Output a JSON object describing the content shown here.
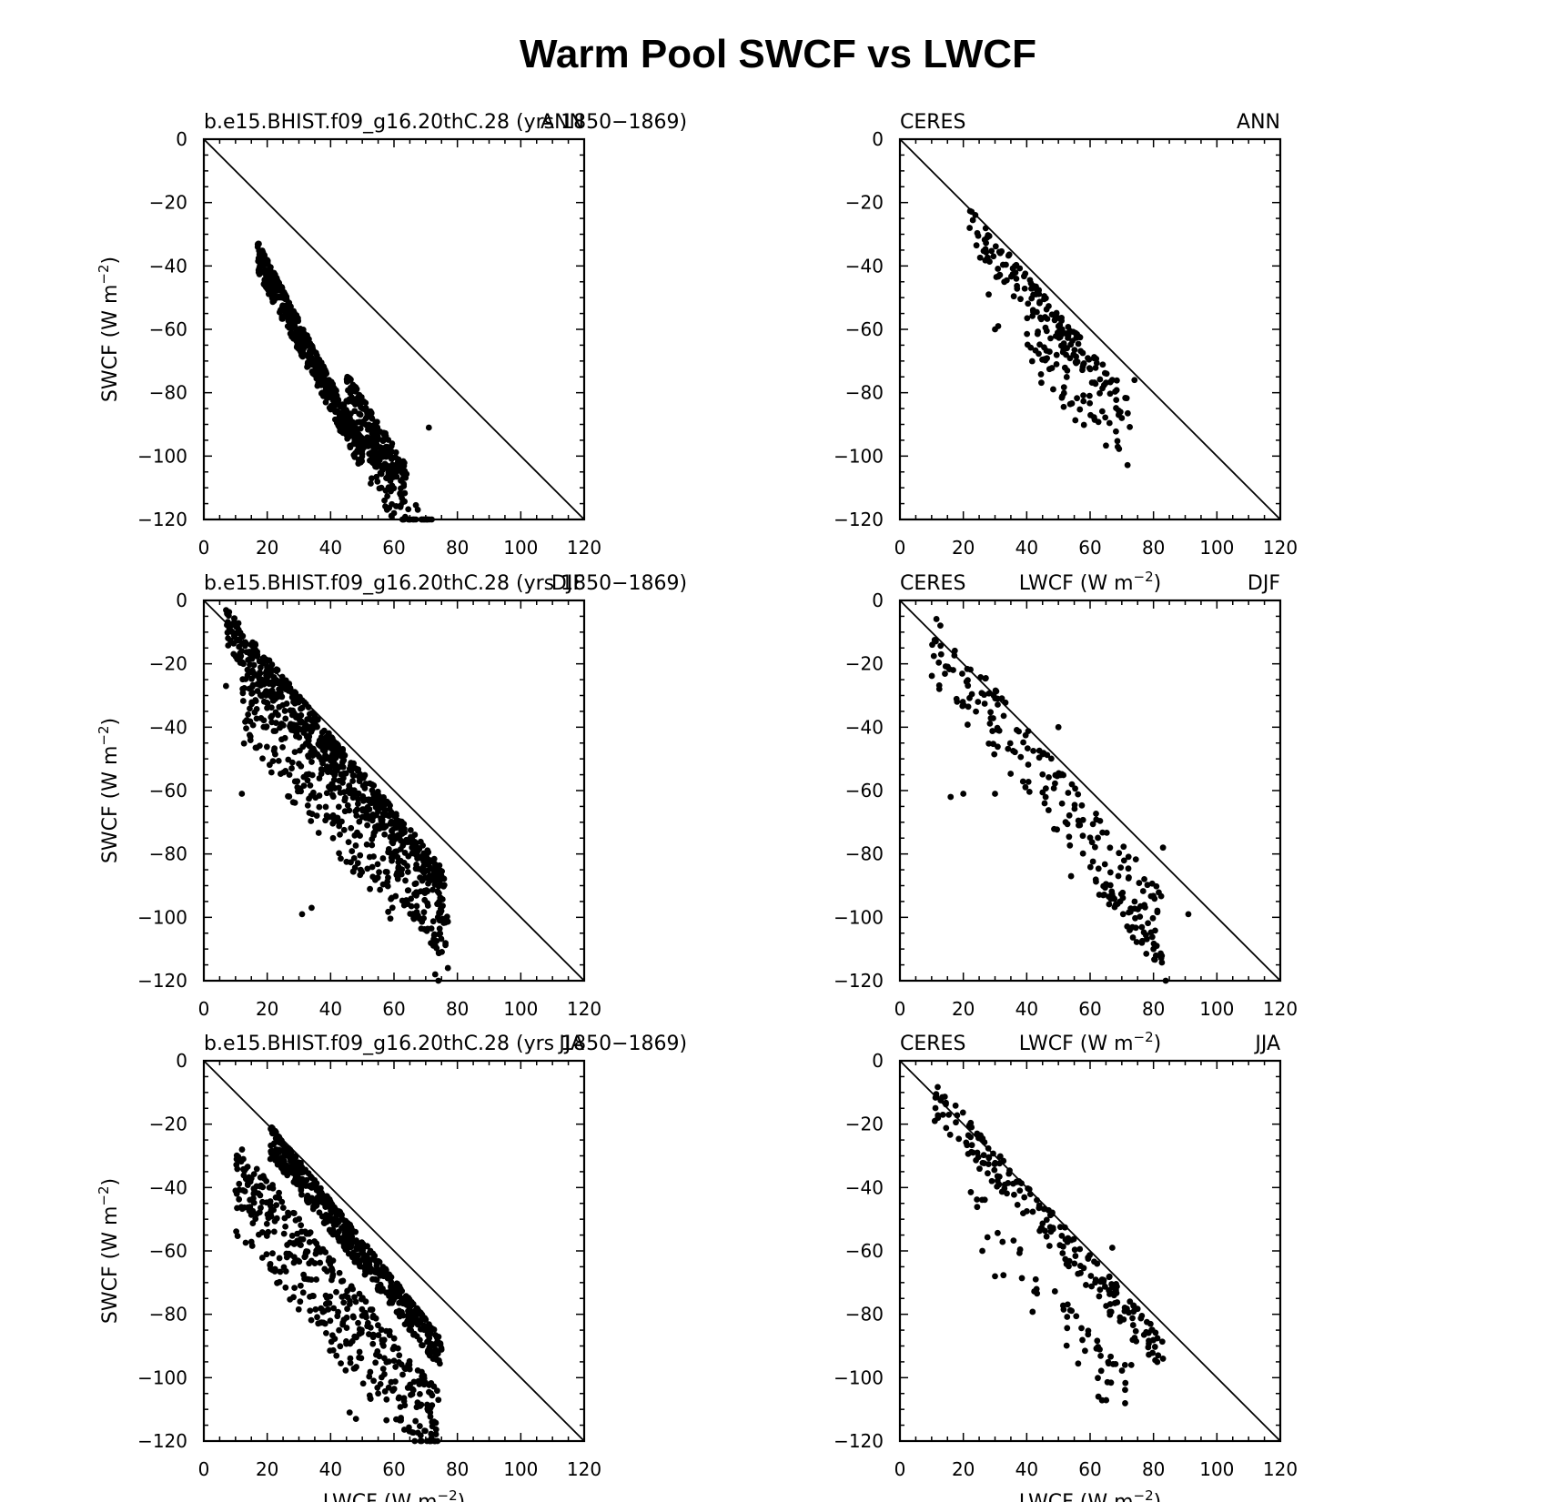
{
  "figure": {
    "title": "Warm Pool SWCF vs LWCF"
  },
  "common": {
    "xlabel": "LWCF (W m",
    "ylabel": "SWCF (W m",
    "unit_exp": "−2",
    "xlim": [
      0,
      120
    ],
    "ylim": [
      -120,
      0
    ],
    "xticks": [
      "0",
      "20",
      "40",
      "60",
      "80",
      "100",
      "120"
    ],
    "yticks": [
      "0",
      "−20",
      "−40",
      "−60",
      "−80",
      "−100",
      "−120"
    ],
    "marker_color": "#000000",
    "reference_line": "y = -x"
  },
  "chart_data": [
    {
      "type": "scatter",
      "id": "model-ann",
      "left_label": "b.e15.BHIST.f09_g16.20thC.28 (yrs 1850−1869)",
      "right_label": "ANN",
      "show_xlabel": false,
      "show_ylabel": true,
      "clusters": [
        {
          "n": 520,
          "x": [
            17,
            50
          ],
          "f": 1.9,
          "d": [
            0,
            10
          ],
          "seed": 11
        },
        {
          "n": 220,
          "x": [
            45,
            64
          ],
          "f": 1.55,
          "d": [
            4,
            20
          ],
          "seed": 12
        },
        {
          "n": 60,
          "x": [
            52,
            72
          ],
          "f": 1.45,
          "d": [
            18,
            35
          ],
          "seed": 13
        }
      ],
      "points": [
        [
          17,
          -34
        ],
        [
          60,
          -118
        ],
        [
          57,
          -114
        ],
        [
          59,
          -110
        ],
        [
          71,
          -91
        ],
        [
          43,
          -92
        ],
        [
          56,
          -110
        ]
      ]
    },
    {
      "type": "scatter",
      "id": "ceres-ann",
      "left_label": "CERES",
      "right_label": "ANN",
      "show_xlabel": false,
      "show_ylabel": false,
      "clusters": [
        {
          "n": 170,
          "x": [
            22,
            73
          ],
          "f": 1.17,
          "d": [
            -4,
            8
          ],
          "seed": 21
        },
        {
          "n": 55,
          "x": [
            40,
            72
          ],
          "f": 1.25,
          "d": [
            6,
            22
          ],
          "seed": 22
        }
      ],
      "points": [
        [
          30,
          -60
        ],
        [
          31,
          -59
        ],
        [
          69,
          -87
        ],
        [
          70,
          -88
        ],
        [
          22,
          -28
        ],
        [
          74,
          -76
        ],
        [
          28,
          -49
        ]
      ]
    },
    {
      "type": "scatter",
      "id": "model-djf",
      "left_label": "b.e15.BHIST.f09_g16.20thC.28 (yrs 1850−1869)",
      "right_label": "DJF",
      "show_xlabel": false,
      "show_ylabel": true,
      "clusters": [
        {
          "n": 560,
          "x": [
            7,
            76
          ],
          "f": 1.2,
          "d": [
            -6,
            6
          ],
          "seed": 31
        },
        {
          "n": 260,
          "x": [
            12,
            60
          ],
          "f": 1.2,
          "d": [
            5,
            30
          ],
          "seed": 32
        },
        {
          "n": 90,
          "x": [
            60,
            77
          ],
          "f": 1.3,
          "d": [
            0,
            15
          ],
          "seed": 33
        }
      ],
      "points": [
        [
          12,
          -61
        ],
        [
          74,
          -120
        ],
        [
          77,
          -116
        ],
        [
          73,
          -118
        ],
        [
          7,
          -27
        ],
        [
          31,
          -99
        ],
        [
          34,
          -97
        ]
      ]
    },
    {
      "type": "scatter",
      "id": "ceres-djf",
      "left_label": "CERES",
      "center_label": "LWCF (W m",
      "right_label": "DJF",
      "show_xlabel": false,
      "show_ylabel": false,
      "clusters": [
        {
          "n": 180,
          "x": [
            10,
            83
          ],
          "f": 1.2,
          "d": [
            -8,
            14
          ],
          "seed": 41
        },
        {
          "n": 45,
          "x": [
            60,
            84
          ],
          "f": 1.35,
          "d": [
            0,
            8
          ],
          "seed": 42
        }
      ],
      "points": [
        [
          16,
          -62
        ],
        [
          20,
          -61
        ],
        [
          30,
          -61
        ],
        [
          54,
          -87
        ],
        [
          91,
          -99
        ],
        [
          80,
          -110
        ],
        [
          81,
          -109
        ],
        [
          13,
          -17
        ],
        [
          50,
          -40
        ],
        [
          83,
          -78
        ]
      ]
    },
    {
      "type": "scatter",
      "id": "model-jja",
      "left_label": "b.e15.BHIST.f09_g16.20thC.28 (yrs 1850−1869)",
      "right_label": "JJA",
      "show_xlabel": true,
      "show_ylabel": true,
      "clusters": [
        {
          "n": 520,
          "x": [
            21,
            75
          ],
          "f": 1.25,
          "d": [
            -6,
            4
          ],
          "seed": 51
        },
        {
          "n": 420,
          "x": [
            10,
            74
          ],
          "f": 1.25,
          "d": [
            12,
            42
          ],
          "seed": 52
        }
      ],
      "points": [
        [
          21,
          -31
        ],
        [
          46,
          -111
        ],
        [
          48,
          -113
        ],
        [
          72,
          -114
        ],
        [
          10,
          -41
        ],
        [
          74,
          -107
        ],
        [
          55,
          -105
        ]
      ]
    },
    {
      "type": "scatter",
      "id": "ceres-jja",
      "left_label": "CERES",
      "center_label": "LWCF (W m",
      "right_label": "JJA",
      "show_xlabel": true,
      "show_ylabel": false,
      "clusters": [
        {
          "n": 210,
          "x": [
            11,
            83
          ],
          "f": 1.12,
          "d": [
            -6,
            6
          ],
          "seed": 61
        },
        {
          "n": 55,
          "x": [
            22,
            72
          ],
          "f": 1.25,
          "d": [
            10,
            28
          ],
          "seed": 62
        }
      ],
      "points": [
        [
          11,
          -19
        ],
        [
          12,
          -18
        ],
        [
          73,
          -96
        ],
        [
          71,
          -96
        ],
        [
          83,
          -94
        ],
        [
          67,
          -59
        ],
        [
          26,
          -60
        ],
        [
          30,
          -68
        ]
      ]
    }
  ]
}
